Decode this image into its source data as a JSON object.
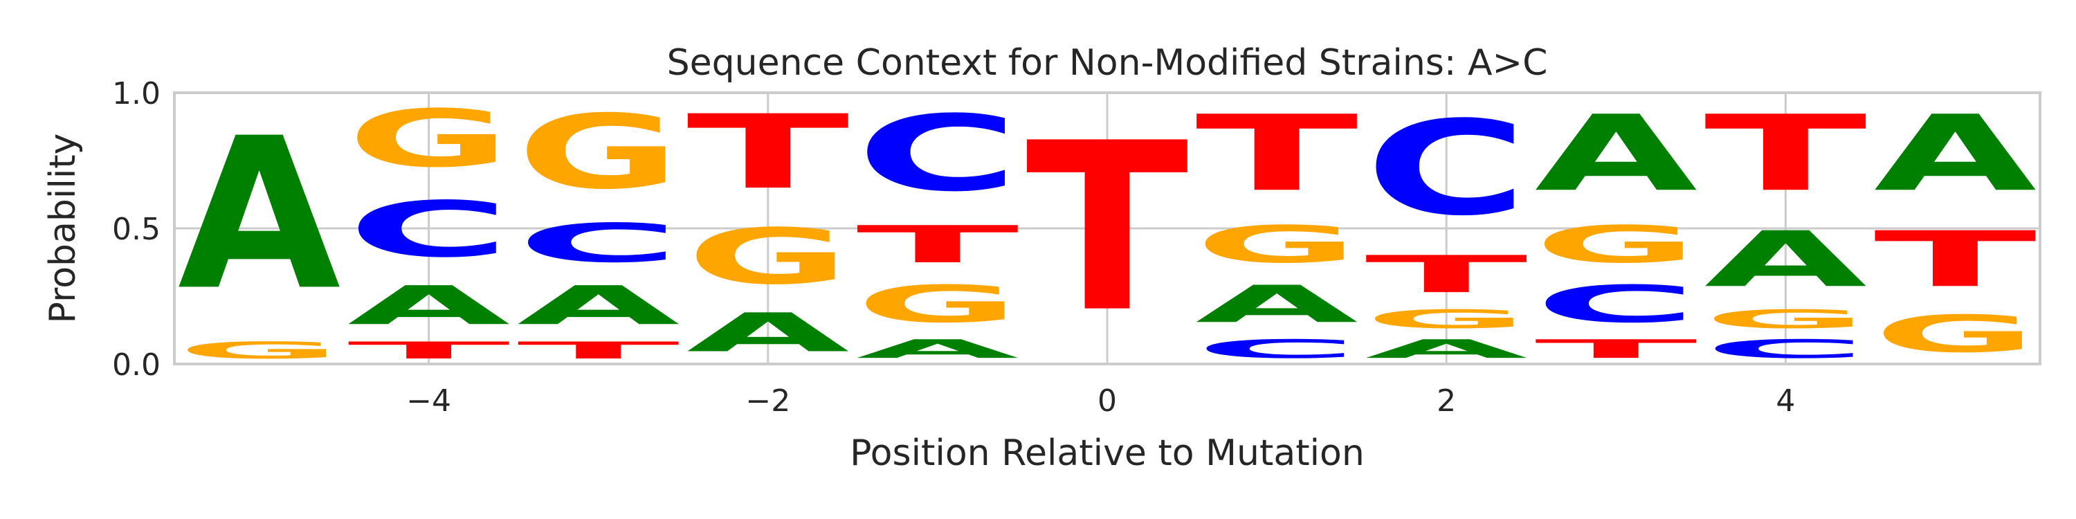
{
  "chart_data": {
    "type": "sequence-logo",
    "title": "Sequence Context for Non-Modified Strains: A>C",
    "xlabel": "Position Relative to Mutation",
    "ylabel": "Probability",
    "x_ticks": [
      -4,
      -2,
      0,
      2,
      4
    ],
    "x_tick_labels": [
      "−4",
      "−2",
      "0",
      "2",
      "4"
    ],
    "y_ticks": [
      0.0,
      0.5,
      1.0
    ],
    "y_tick_labels": [
      "0.0",
      "0.5",
      "1.0"
    ],
    "xlim": [
      -5.5,
      5.5
    ],
    "ylim": [
      0,
      1
    ],
    "grid": true,
    "colors": {
      "A": "#008000",
      "C": "#0000ff",
      "G": "#ffa500",
      "T": "#ff0000"
    },
    "positions": [
      {
        "pos": -5,
        "stack": [
          {
            "base": "G",
            "p": 0.1
          },
          {
            "base": "A",
            "p": 0.9
          }
        ]
      },
      {
        "pos": -4,
        "stack": [
          {
            "base": "T",
            "p": 0.1
          },
          {
            "base": "A",
            "p": 0.23
          },
          {
            "base": "C",
            "p": 0.33
          },
          {
            "base": "G",
            "p": 0.34
          }
        ]
      },
      {
        "pos": -3,
        "stack": [
          {
            "base": "T",
            "p": 0.1
          },
          {
            "base": "A",
            "p": 0.23
          },
          {
            "base": "C",
            "p": 0.23
          },
          {
            "base": "G",
            "p": 0.44
          }
        ]
      },
      {
        "pos": -2,
        "stack": [
          {
            "base": "A",
            "p": 0.23
          },
          {
            "base": "G",
            "p": 0.33
          },
          {
            "base": "T",
            "p": 0.44
          }
        ]
      },
      {
        "pos": -1,
        "stack": [
          {
            "base": "A",
            "p": 0.11
          },
          {
            "base": "G",
            "p": 0.22
          },
          {
            "base": "T",
            "p": 0.22
          },
          {
            "base": "C",
            "p": 0.45
          }
        ]
      },
      {
        "pos": 0,
        "stack": [
          {
            "base": "T",
            "p": 1.0
          }
        ]
      },
      {
        "pos": 1,
        "stack": [
          {
            "base": "C",
            "p": 0.11
          },
          {
            "base": "A",
            "p": 0.22
          },
          {
            "base": "G",
            "p": 0.22
          },
          {
            "base": "T",
            "p": 0.45
          }
        ]
      },
      {
        "pos": 2,
        "stack": [
          {
            "base": "A",
            "p": 0.11
          },
          {
            "base": "G",
            "p": 0.11
          },
          {
            "base": "T",
            "p": 0.22
          },
          {
            "base": "C",
            "p": 0.56
          }
        ]
      },
      {
        "pos": 3,
        "stack": [
          {
            "base": "T",
            "p": 0.11
          },
          {
            "base": "C",
            "p": 0.22
          },
          {
            "base": "G",
            "p": 0.22
          },
          {
            "base": "A",
            "p": 0.45
          }
        ]
      },
      {
        "pos": 4,
        "stack": [
          {
            "base": "C",
            "p": 0.11
          },
          {
            "base": "G",
            "p": 0.11
          },
          {
            "base": "A",
            "p": 0.33
          },
          {
            "base": "T",
            "p": 0.45
          }
        ]
      },
      {
        "pos": 5,
        "stack": [
          {
            "base": "G",
            "p": 0.22
          },
          {
            "base": "T",
            "p": 0.33
          },
          {
            "base": "A",
            "p": 0.45
          }
        ]
      }
    ]
  }
}
